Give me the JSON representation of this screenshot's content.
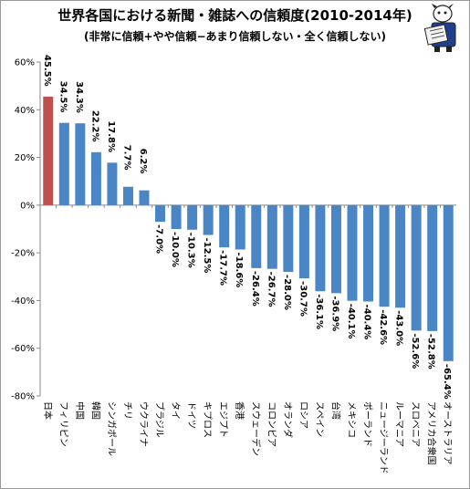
{
  "chart_data": {
    "type": "bar",
    "title": "世界各国における新聞・雑誌への信頼度(2010-2014年)",
    "subtitle": "(非常に信頼+やや信頼−あまり信頼しない・全く信頼しない)",
    "categories": [
      "日本",
      "フィリピン",
      "中国",
      "韓国",
      "シンガポール",
      "チリ",
      "ウクライナ",
      "ブラジル",
      "タイ",
      "ドイツ",
      "キプロス",
      "エジプト",
      "香港",
      "スウェーデン",
      "コロンビア",
      "オランダ",
      "ロシア",
      "スペイン",
      "台湾",
      "メキシコ",
      "ポーランド",
      "ニュージーランド",
      "ルーマニア",
      "スロベニア",
      "アメリカ合衆国",
      "オーストラリア"
    ],
    "values": [
      45.5,
      34.5,
      34.3,
      22.2,
      17.8,
      7.7,
      6.2,
      -7.0,
      -10.0,
      -10.3,
      -12.5,
      -17.7,
      -18.6,
      -26.4,
      -26.7,
      -28.0,
      -30.7,
      -36.1,
      -36.9,
      -40.1,
      -40.4,
      -42.6,
      -43.0,
      -52.6,
      -52.8,
      -65.4
    ],
    "value_labels": [
      "45.5%",
      "34.5%",
      "34.3%",
      "22.2%",
      "17.8%",
      "7.7%",
      "6.2%",
      "-7.0%",
      "-10.0%",
      "-10.3%",
      "-12.5%",
      "-17.7%",
      "-18.6%",
      "-26.4%",
      "-26.7%",
      "-28.0%",
      "-30.7%",
      "-36.1%",
      "-36.9%",
      "-40.1%",
      "-40.4%",
      "-42.6%",
      "-43.0%",
      "-52.6%",
      "-52.8%",
      "-65.4%"
    ],
    "ylim": [
      -80,
      60
    ],
    "yticks": [
      60,
      40,
      20,
      0,
      -20,
      -40,
      -60,
      -80
    ],
    "ytick_labels": [
      "60%",
      "40%",
      "20%",
      "0%",
      "-20%",
      "-40%",
      "-60%",
      "-80%"
    ],
    "highlight_index": 0,
    "colors": {
      "bar": "#4a86c5",
      "highlight": "#c0504d",
      "axis": "#888888"
    },
    "grid": false,
    "legend": "none"
  },
  "decor": {
    "mascot": "reading-newspaper-mascot-icon"
  }
}
